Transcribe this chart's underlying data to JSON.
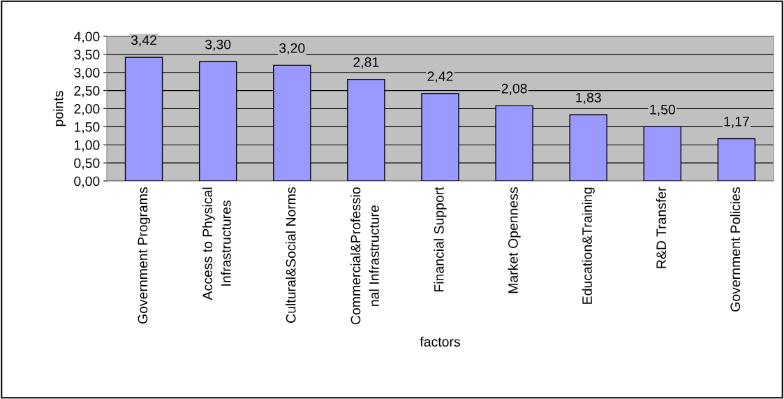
{
  "chart_data": {
    "type": "bar",
    "xlabel": "factors",
    "ylabel": "points",
    "categories": [
      "Government Programs",
      "Access to Physical\nInfrastructures",
      "Cultural&Social Norms",
      "Commercial&Professio\nnal Infrastructure",
      "Financial Support",
      "Market Openness",
      "Education&Training",
      "R&D Transfer",
      "Government Policies"
    ],
    "values": [
      3.42,
      3.3,
      3.2,
      2.81,
      2.42,
      2.08,
      1.83,
      1.5,
      1.17
    ],
    "value_labels": [
      "3,42",
      "3,30",
      "3,20",
      "2,81",
      "2,42",
      "2,08",
      "1,83",
      "1,50",
      "1,17"
    ],
    "color": "#9999ff",
    "ylim": [
      0,
      4
    ],
    "yticks": [
      {
        "value": 0,
        "label": "0,00"
      },
      {
        "value": 0.5,
        "label": "0,50"
      },
      {
        "value": 1,
        "label": "1,00"
      },
      {
        "value": 1.5,
        "label": "1,50"
      },
      {
        "value": 2,
        "label": "2,00"
      },
      {
        "value": 2.5,
        "label": "2,50"
      },
      {
        "value": 3,
        "label": "3,00"
      },
      {
        "value": 3.5,
        "label": "3,50"
      },
      {
        "value": 4,
        "label": "4,00"
      }
    ],
    "grid": "y",
    "legend": false
  }
}
